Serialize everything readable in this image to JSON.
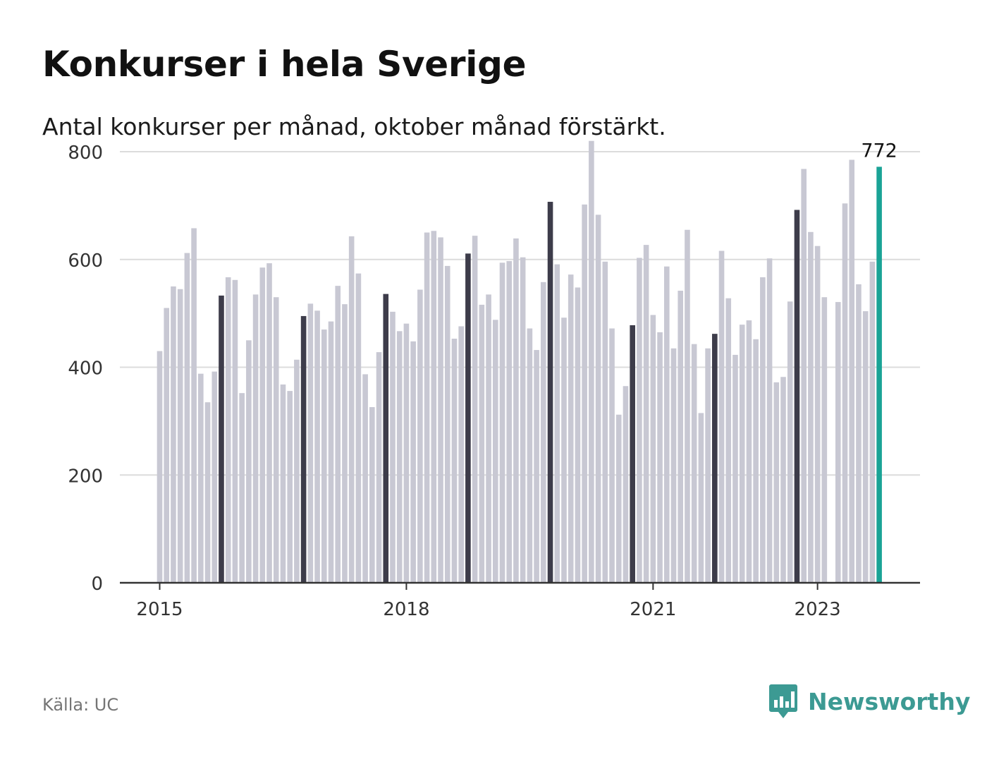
{
  "title": "Konkurser i hela Sverige",
  "subtitle": "Antal konkurser per månad, oktober månad förstärkt.",
  "source": "Källa: UC",
  "brand": "Newsworthy",
  "colors": {
    "bar_default": "#c8c8d3",
    "bar_october": "#3d3c4a",
    "bar_latest": "#1aa396",
    "grid": "#dcdcdc",
    "axis": "#333333",
    "brand": "#3c9a93"
  },
  "chart_data": {
    "type": "bar",
    "title": "Konkurser i hela Sverige",
    "subtitle": "Antal konkurser per månad, oktober månad förstärkt.",
    "xlabel": "",
    "ylabel": "",
    "ylim": [
      0,
      900
    ],
    "yticks": [
      0,
      200,
      400,
      600,
      800
    ],
    "xtick_labels": [
      "2015",
      "2018",
      "2021",
      "2023"
    ],
    "grid": true,
    "start": "2015-01",
    "highlight": "October of each year darker; latest month (2023-10) teal",
    "latest_label": "772",
    "values": [
      430,
      510,
      550,
      545,
      612,
      658,
      388,
      335,
      392,
      533,
      567,
      562,
      352,
      450,
      535,
      585,
      593,
      530,
      368,
      356,
      414,
      495,
      518,
      505,
      470,
      485,
      551,
      517,
      643,
      574,
      387,
      326,
      428,
      536,
      503,
      467,
      481,
      448,
      544,
      650,
      653,
      641,
      588,
      453,
      476,
      611,
      644,
      516,
      535,
      488,
      594,
      597,
      639,
      604,
      472,
      432,
      558,
      707,
      591,
      492,
      572,
      548,
      702,
      820,
      683,
      596,
      472,
      312,
      365,
      478,
      603,
      627,
      497,
      465,
      587,
      435,
      542,
      655,
      443,
      315,
      435,
      462,
      616,
      528,
      423,
      479,
      487,
      452,
      567,
      602,
      372,
      382,
      522,
      692,
      768,
      651,
      625,
      530,
      null,
      521,
      704,
      785,
      554,
      504,
      596,
      772
    ]
  }
}
